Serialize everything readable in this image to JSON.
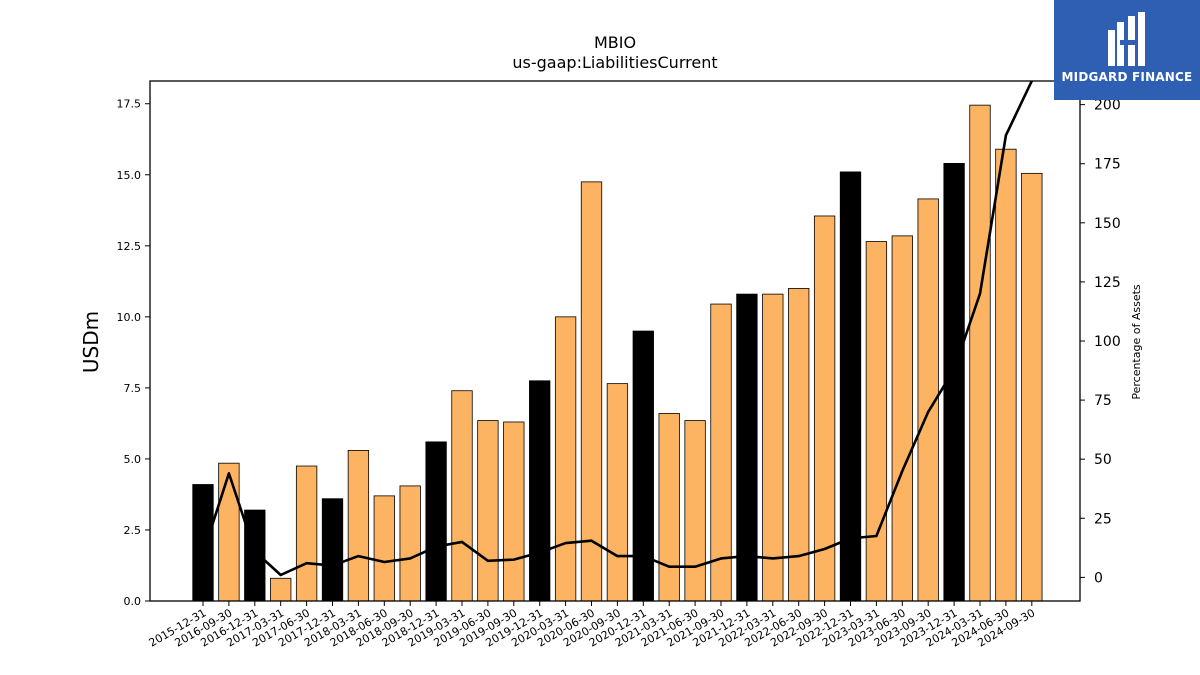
{
  "chart_data": {
    "type": "bar",
    "title": "MBIO",
    "subtitle": "us-gaap:LiabilitiesCurrent",
    "ylabel": "USDm",
    "y2label": "Percentage of Assets",
    "ylim": [
      0,
      18.3
    ],
    "y2lim": [
      -10,
      210
    ],
    "yticks": [
      "0.0",
      "2.5",
      "5.0",
      "7.5",
      "10.0",
      "12.5",
      "15.0",
      "17.5"
    ],
    "y2ticks": [
      "0",
      "25",
      "50",
      "75",
      "100",
      "125",
      "150",
      "175",
      "200"
    ],
    "categories": [
      "2015-12-31",
      "2016-09-30",
      "2016-12-31",
      "2017-03-31",
      "2017-06-30",
      "2017-12-31",
      "2018-03-31",
      "2018-06-30",
      "2018-09-30",
      "2018-12-31",
      "2019-03-31",
      "2019-06-30",
      "2019-09-30",
      "2019-12-31",
      "2020-03-31",
      "2020-06-30",
      "2020-09-30",
      "2020-12-31",
      "2021-03-31",
      "2021-06-30",
      "2021-09-30",
      "2021-12-31",
      "2022-03-31",
      "2022-06-30",
      "2022-09-30",
      "2022-12-31",
      "2023-03-31",
      "2023-06-30",
      "2023-09-30",
      "2023-12-31",
      "2024-03-31",
      "2024-06-30",
      "2024-09-30"
    ],
    "series": [
      {
        "kind": "bar",
        "values": [
          4.1,
          4.85,
          3.2,
          0.8,
          4.75,
          3.6,
          5.3,
          3.7,
          4.05,
          5.6,
          7.4,
          6.35,
          6.3,
          7.75,
          10.0,
          14.75,
          7.65,
          9.5,
          6.6,
          6.35,
          10.45,
          10.8,
          10.8,
          11.0,
          13.55,
          15.1,
          12.65,
          12.85,
          14.15,
          15.4,
          17.45,
          15.9,
          15.05
        ],
        "year_end": [
          true,
          false,
          true,
          false,
          false,
          true,
          false,
          false,
          false,
          true,
          false,
          false,
          false,
          true,
          false,
          false,
          false,
          true,
          false,
          false,
          false,
          true,
          false,
          false,
          false,
          true,
          false,
          false,
          false,
          true,
          false,
          false,
          false
        ]
      },
      {
        "kind": "line",
        "axis": "right",
        "values": [
          10,
          44,
          11,
          1,
          6,
          5,
          9,
          6.5,
          8,
          13,
          15,
          7,
          7.5,
          10.5,
          14.5,
          15.5,
          9,
          9,
          4.5,
          4.5,
          8,
          9,
          8,
          9,
          12,
          16.5,
          17.5,
          45,
          70,
          88,
          120,
          187,
          210
        ]
      }
    ],
    "colors": {
      "year_end_bar": "#000000",
      "quarter_bar": "#fdb462",
      "bar_edge": "#000000",
      "line": "#000000"
    },
    "grid": false,
    "legend": "none"
  },
  "logo": {
    "text": "MIDGARD FINANCE"
  }
}
